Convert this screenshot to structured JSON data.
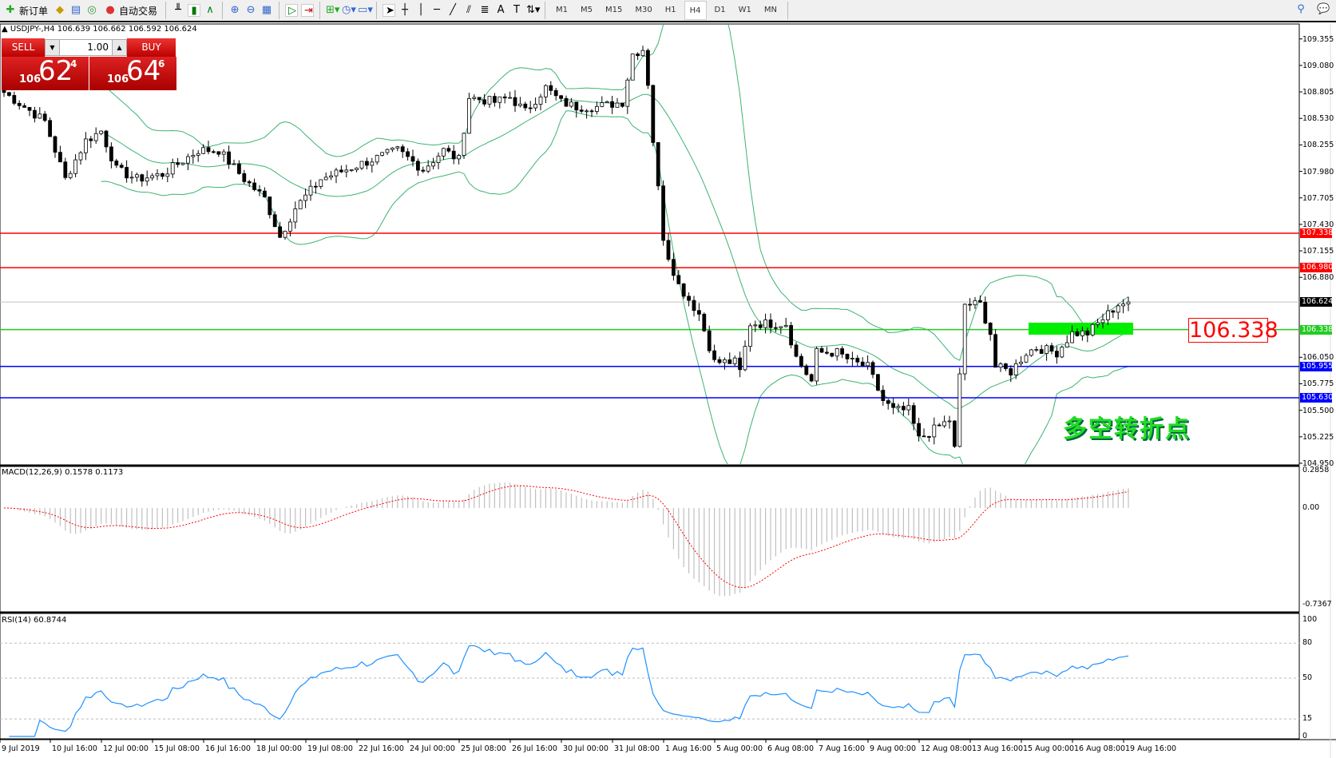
{
  "toolbar": {
    "new_order": "新订单",
    "auto_trading": "自动交易",
    "icons": [
      "new-order-icon",
      "market-watch-icon",
      "data-window-icon",
      "signal-icon",
      "auto-trading-icon",
      "bar-chart-icon",
      "candlestick-icon",
      "line-chart-icon",
      "zoom-in-icon",
      "zoom-out-icon",
      "tile-windows-icon",
      "auto-scroll-icon",
      "chart-shift-icon",
      "indicators-icon",
      "periods-icon",
      "templates-icon",
      "cursor-icon",
      "crosshair-icon",
      "vertical-line-icon",
      "horizontal-line-icon",
      "trendline-icon",
      "equidistant-channel-icon",
      "fibonacci-icon",
      "text-icon",
      "text-label-icon",
      "arrows-icon",
      "search-icon",
      "chat-icon"
    ],
    "timeframes": [
      "M1",
      "M5",
      "M15",
      "M30",
      "H1",
      "H4",
      "D1",
      "W1",
      "MN"
    ],
    "active_timeframe": "H4"
  },
  "chart": {
    "header": "USDJPY-,H4  106.639 106.662 106.592 106.624",
    "sell_label": "SELL",
    "buy_label": "BUY",
    "lot": "1.00",
    "sell_price": {
      "prefix": "106",
      "big": "62",
      "sup": "4"
    },
    "buy_price": {
      "prefix": "106",
      "big": "64",
      "sup": "6"
    },
    "price_axis": [
      "109.355",
      "109.080",
      "108.805",
      "108.530",
      "108.255",
      "107.980",
      "107.705",
      "107.430",
      "107.155",
      "106.880",
      "106.050",
      "105.775",
      "105.500",
      "105.225",
      "104.950"
    ],
    "levels": [
      {
        "price": "107.338",
        "color": "#ff0000"
      },
      {
        "price": "106.980",
        "color": "#ff0000"
      },
      {
        "price": "106.624",
        "color": "#000000",
        "line": "#c0c0c0"
      },
      {
        "price": "106.338",
        "color": "#22cc22"
      },
      {
        "price": "105.955",
        "color": "#0000ff"
      },
      {
        "price": "105.630",
        "color": "#0000ff"
      }
    ],
    "level_label": "106.338",
    "annotation": "多空转折点",
    "zone_color": "#00ee00",
    "bollinger_color": "#3cb371",
    "time_axis": [
      "9 Jul 2019",
      "10 Jul 16:00",
      "12 Jul 00:00",
      "15 Jul 08:00",
      "16 Jul 16:00",
      "18 Jul 00:00",
      "19 Jul 08:00",
      "22 Jul 16:00",
      "24 Jul 00:00",
      "25 Jul 08:00",
      "26 Jul 16:00",
      "30 Jul 00:00",
      "31 Jul 08:00",
      "1 Aug 16:00",
      "5 Aug 00:00",
      "6 Aug 08:00",
      "7 Aug 16:00",
      "9 Aug 00:00",
      "12 Aug 08:00",
      "13 Aug 16:00",
      "15 Aug 00:00",
      "16 Aug 08:00",
      "19 Aug 16:00"
    ],
    "price_path": [
      [
        0,
        108.8
      ],
      [
        8,
        108.5
      ],
      [
        12,
        107.9
      ],
      [
        16,
        108.3
      ],
      [
        19,
        108.4
      ],
      [
        22,
        108.0
      ],
      [
        26,
        107.9
      ],
      [
        31,
        107.95
      ],
      [
        38,
        108.2
      ],
      [
        42,
        108.2
      ],
      [
        47,
        107.9
      ],
      [
        51,
        107.7
      ],
      [
        54,
        107.3
      ],
      [
        57,
        107.6
      ],
      [
        62,
        107.9
      ],
      [
        67,
        108.0
      ],
      [
        72,
        108.1
      ],
      [
        77,
        108.2
      ],
      [
        82,
        108.0
      ],
      [
        86,
        108.2
      ],
      [
        89,
        108.1
      ],
      [
        91,
        108.75
      ],
      [
        96,
        108.7
      ],
      [
        99,
        108.75
      ],
      [
        102,
        108.6
      ],
      [
        106,
        108.85
      ],
      [
        109,
        108.7
      ],
      [
        112,
        108.65
      ],
      [
        116,
        108.65
      ],
      [
        121,
        108.7
      ],
      [
        123,
        109.2
      ],
      [
        125,
        109.25
      ],
      [
        126,
        108.9
      ],
      [
        127,
        108.3
      ],
      [
        129,
        107.3
      ],
      [
        130,
        107.1
      ],
      [
        132,
        106.8
      ],
      [
        136,
        106.5
      ],
      [
        139,
        106.0
      ],
      [
        143,
        106.0
      ],
      [
        144,
        105.9
      ],
      [
        146,
        106.4
      ],
      [
        149,
        106.4
      ],
      [
        153,
        106.4
      ],
      [
        155,
        106.05
      ],
      [
        158,
        105.8
      ],
      [
        159,
        106.1
      ],
      [
        163,
        106.1
      ],
      [
        166,
        106.0
      ],
      [
        169,
        105.95
      ],
      [
        172,
        105.6
      ],
      [
        174,
        105.5
      ],
      [
        177,
        105.5
      ],
      [
        179,
        105.2
      ],
      [
        182,
        105.3
      ],
      [
        185,
        105.4
      ],
      [
        186,
        105.1
      ],
      [
        188,
        106.6
      ],
      [
        191,
        106.6
      ],
      [
        193,
        106.3
      ],
      [
        194,
        105.95
      ],
      [
        197,
        105.9
      ],
      [
        200,
        106.1
      ],
      [
        202,
        106.15
      ],
      [
        206,
        106.1
      ],
      [
        209,
        106.3
      ],
      [
        212,
        106.3
      ],
      [
        216,
        106.5
      ],
      [
        218,
        106.6
      ],
      [
        220,
        106.624
      ]
    ]
  },
  "macd": {
    "label": "MACD(12,26,9) 0.1578 0.1173",
    "axis": [
      "0.2858",
      "0.00",
      "-0.7367"
    ],
    "hist_color": "#c0c0c0",
    "signal_color": "#ff0000"
  },
  "rsi": {
    "label": "RSI(14) 60.8744",
    "axis": [
      "100",
      "80",
      "50",
      "15",
      "0"
    ],
    "color": "#1e90ff"
  }
}
